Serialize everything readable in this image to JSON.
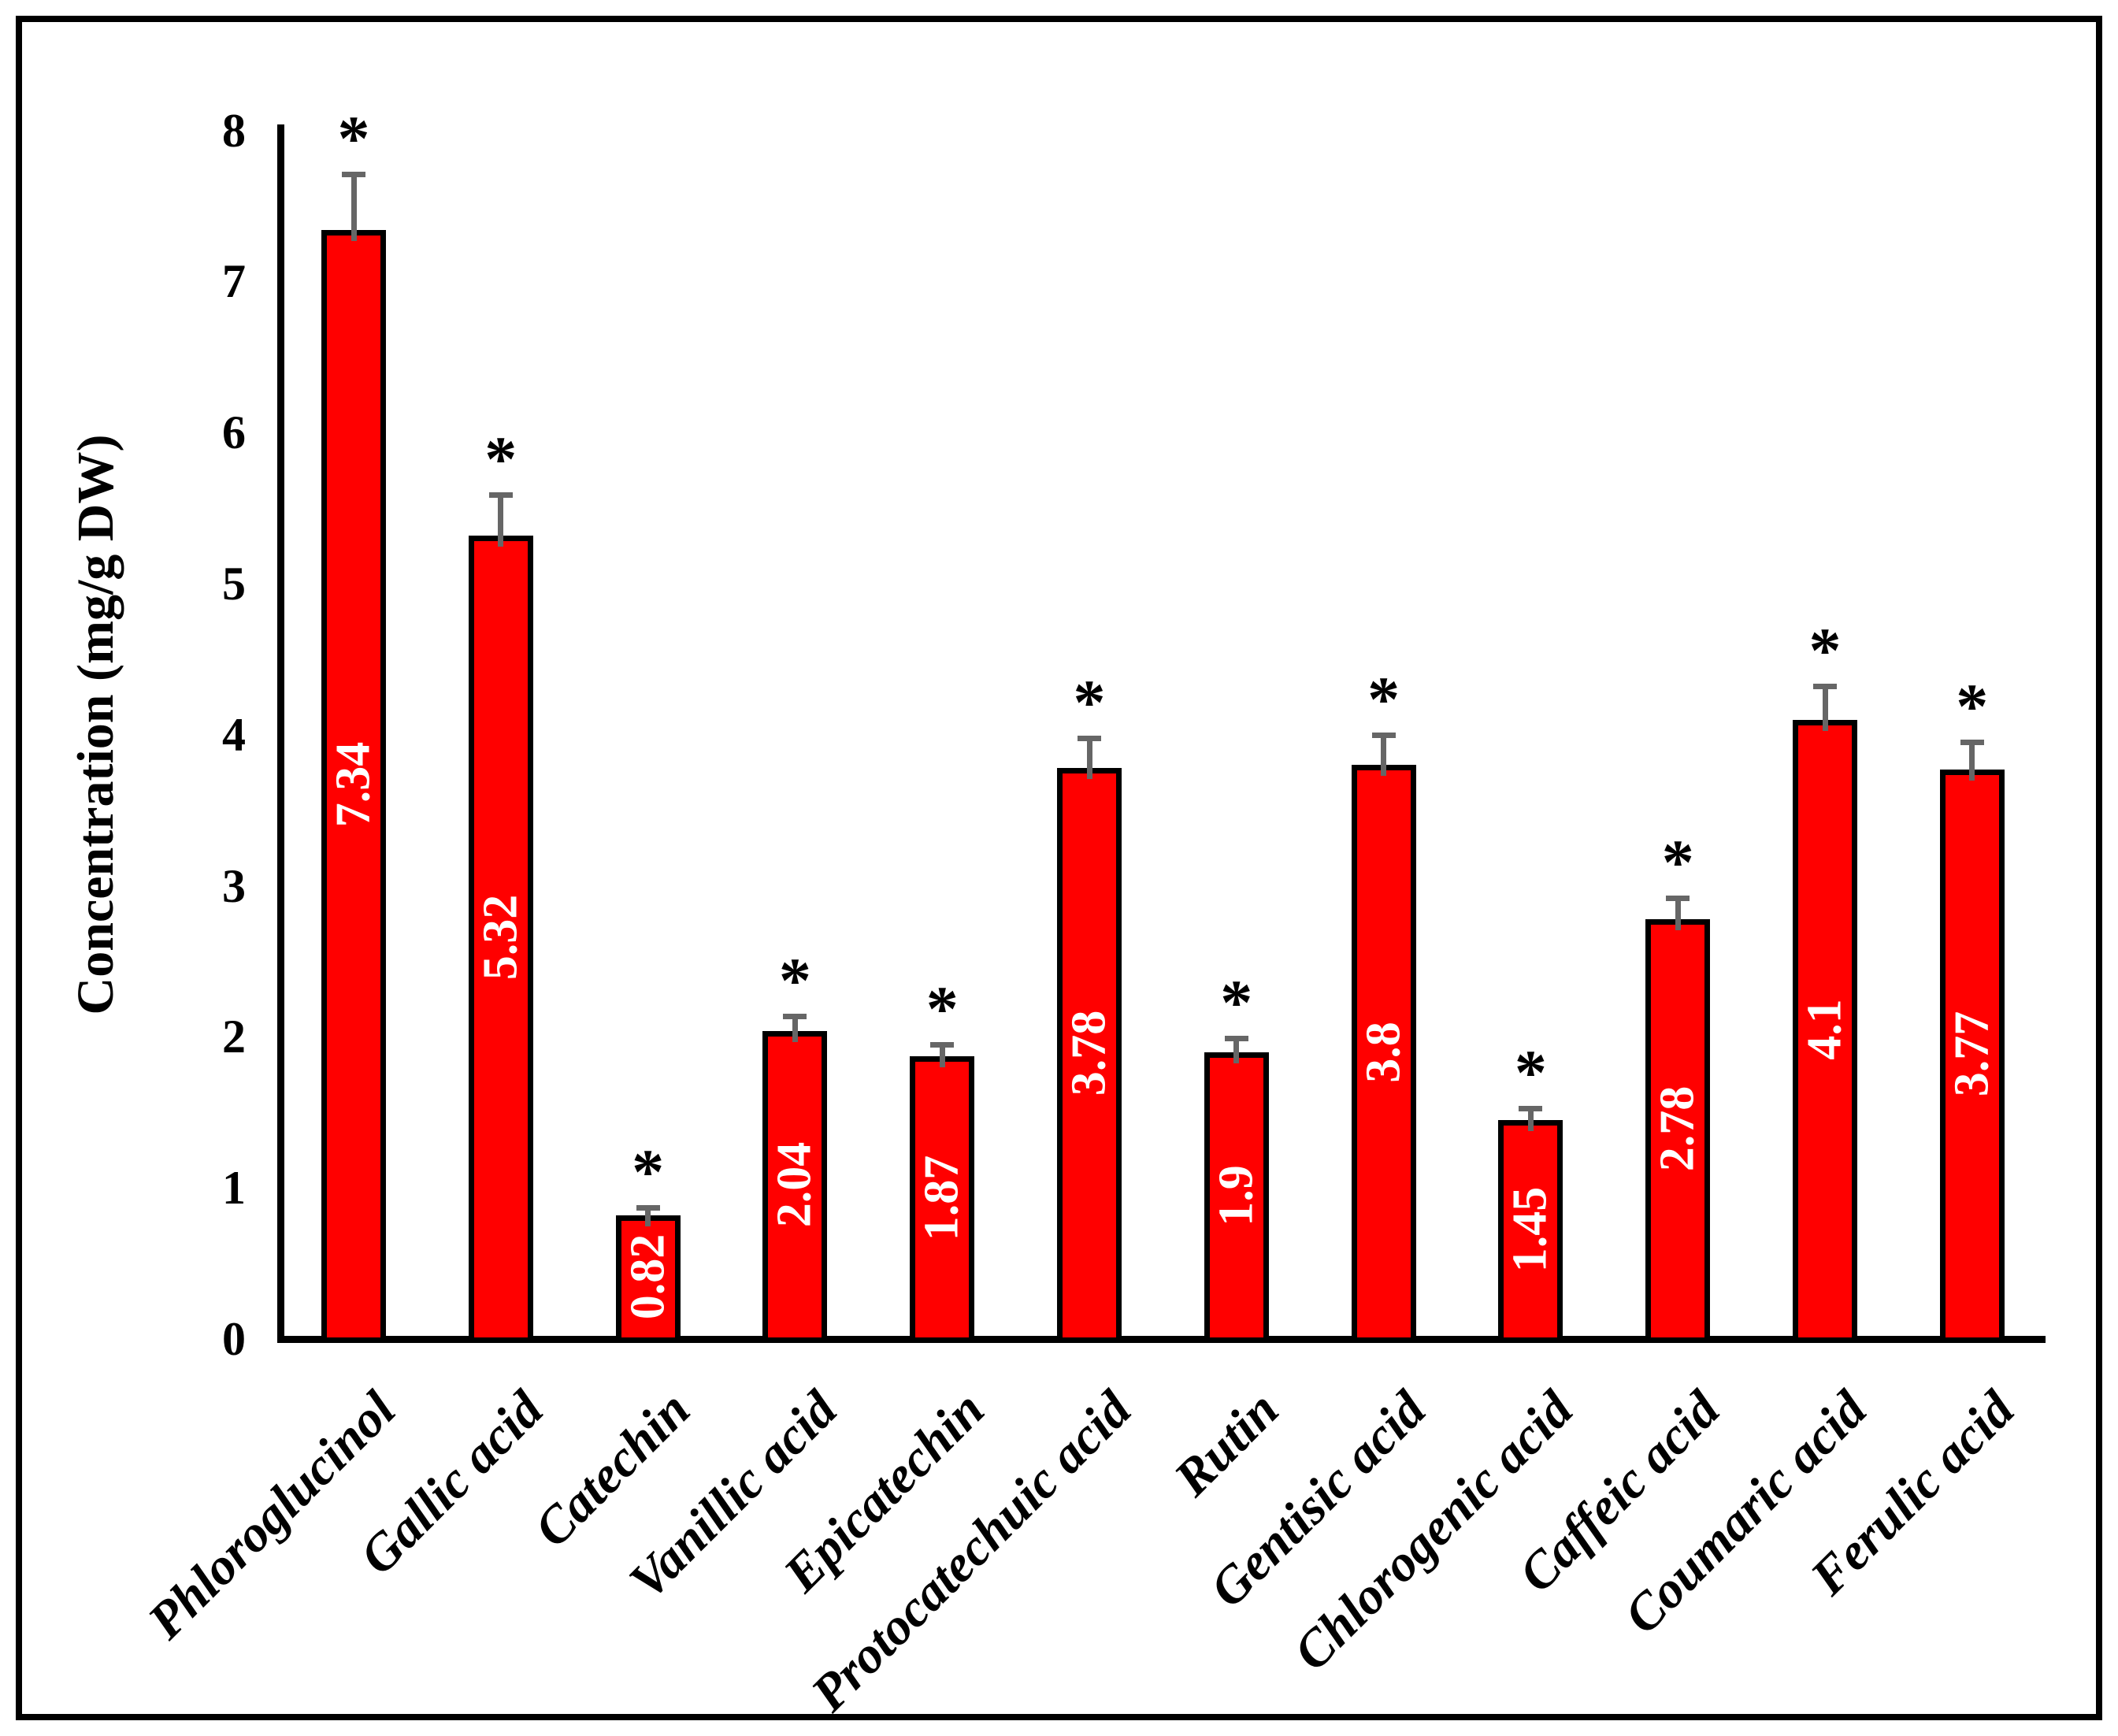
{
  "figure": {
    "background": "#ffffff",
    "border_color": "#000000"
  },
  "chart_data": {
    "type": "bar",
    "title": "",
    "xlabel": "",
    "ylabel": "Concentration (mg/g DW)",
    "ylim": [
      0,
      8
    ],
    "ytick_labels": [
      "0",
      "1",
      "2",
      "3",
      "4",
      "5",
      "6",
      "7",
      "8"
    ],
    "grid": false,
    "legend": false,
    "categories": [
      "Phloroglucinol",
      "Gallic acid",
      "Catechin",
      "Vanillic acid",
      "Epicatechin",
      "Protocatechuic acid",
      "Rutin",
      "Gentisic acid",
      "Chlorogenic acid",
      "Caffeic acid",
      "Coumaric acid",
      "Ferulic acid"
    ],
    "values": [
      7.34,
      5.32,
      0.82,
      2.04,
      1.87,
      3.78,
      1.9,
      3.8,
      1.45,
      2.78,
      4.1,
      3.77
    ],
    "value_labels": [
      "7.34",
      "5.32",
      "0.82",
      "2.04",
      "1.87",
      "3.78",
      "1.9",
      "3.8",
      "1.45",
      "2.78",
      "4.1",
      "3.77"
    ],
    "errors": [
      0.37,
      0.27,
      0.05,
      0.1,
      0.08,
      0.2,
      0.09,
      0.2,
      0.08,
      0.14,
      0.22,
      0.18
    ],
    "significance_markers": [
      "*",
      "*",
      "*",
      "*",
      "*",
      "*",
      "*",
      "*",
      "*",
      "*",
      "*",
      "*"
    ],
    "bar_color": "#ff0000",
    "bar_border_color": "#000000",
    "error_bar_color": "#666666",
    "value_label_color": "#ffffff",
    "axis_color": "#000000",
    "text_color": "#000000"
  }
}
